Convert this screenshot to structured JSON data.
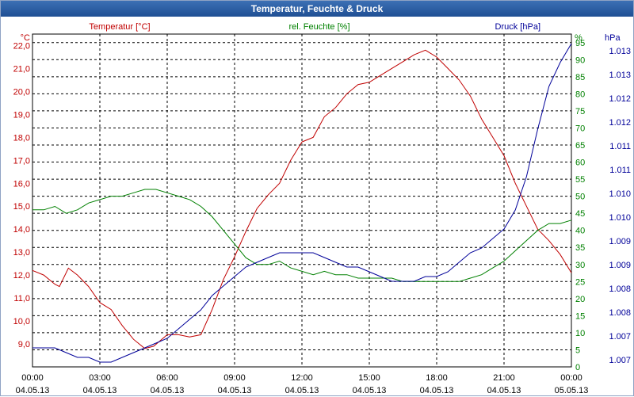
{
  "window": {
    "title": "Temperatur, Feuchte & Druck"
  },
  "colors": {
    "temperature": "#c00000",
    "humidity": "#008000",
    "pressure": "#000099",
    "axis_text": "#000000",
    "grid": "#000000",
    "titlebar": "#2a5da3"
  },
  "chart_data": {
    "type": "line",
    "title": "Temperatur, Feuchte & Druck",
    "x_time_labels": [
      "00:00",
      "03:00",
      "06:00",
      "09:00",
      "12:00",
      "15:00",
      "18:00",
      "21:00",
      "00:00"
    ],
    "x_date_labels": [
      "04.05.13",
      "04.05.13",
      "04.05.13",
      "04.05.13",
      "04.05.13",
      "04.05.13",
      "04.05.13",
      "04.05.13",
      "05.05.13"
    ],
    "x_hours": {
      "min": 0,
      "max": 24
    },
    "axes": {
      "temperature": {
        "unit": "°C",
        "ylim": [
          8.0,
          22.5
        ],
        "tick_labels": [
          "9,0",
          "10,0",
          "11,0",
          "12,0",
          "13,0",
          "14,0",
          "15,0",
          "16,0",
          "17,0",
          "18,0",
          "19,0",
          "20,0",
          "21,0",
          "22,0"
        ],
        "tick_values": [
          9,
          10,
          11,
          12,
          13,
          14,
          15,
          16,
          17,
          18,
          19,
          20,
          21,
          22
        ]
      },
      "humidity": {
        "unit": "%",
        "ylim": [
          0,
          97.5
        ],
        "tick_labels": [
          "0",
          "5",
          "10",
          "15",
          "20",
          "25",
          "30",
          "35",
          "40",
          "45",
          "50",
          "55",
          "60",
          "65",
          "70",
          "75",
          "80",
          "85",
          "90",
          "95"
        ],
        "tick_values": [
          0,
          5,
          10,
          15,
          20,
          25,
          30,
          35,
          40,
          45,
          50,
          55,
          60,
          65,
          70,
          75,
          80,
          85,
          90,
          95
        ]
      },
      "pressure": {
        "unit": "hPa",
        "ylim": [
          1006.6,
          1013.6
        ],
        "tick_labels": [
          "1.007",
          "1.007",
          "1.008",
          "1.008",
          "1.009",
          "1.009",
          "1.010",
          "1.010",
          "1.011",
          "1.011",
          "1.012",
          "1.012",
          "1.013",
          "1.013"
        ],
        "tick_values": [
          1006.75,
          1007.25,
          1007.75,
          1008.25,
          1008.75,
          1009.25,
          1009.75,
          1010.25,
          1010.75,
          1011.25,
          1011.75,
          1012.25,
          1012.75,
          1013.25
        ]
      }
    },
    "series": [
      {
        "name": "Temperatur [°C]",
        "axis": "temperature",
        "x": [
          0,
          0.5,
          1.0,
          1.2,
          1.6,
          2.0,
          2.5,
          3.0,
          3.5,
          4.0,
          4.5,
          5.0,
          5.4,
          6.0,
          6.5,
          7.0,
          7.5,
          8.0,
          8.5,
          9.0,
          9.5,
          10.0,
          10.5,
          11.0,
          11.5,
          12.0,
          12.5,
          13.0,
          13.5,
          14.0,
          14.5,
          15.0,
          15.5,
          16.0,
          16.5,
          17.0,
          17.5,
          18.0,
          18.5,
          19.0,
          19.5,
          20.0,
          20.5,
          21.0,
          21.5,
          22.0,
          22.5,
          23.0,
          23.5,
          24.0
        ],
        "values": [
          12.2,
          12.0,
          11.6,
          11.5,
          12.3,
          12.0,
          11.5,
          10.8,
          10.5,
          9.8,
          9.2,
          8.8,
          8.9,
          9.4,
          9.4,
          9.3,
          9.4,
          10.5,
          11.8,
          12.8,
          13.9,
          14.9,
          15.5,
          16.0,
          17.0,
          17.8,
          18.0,
          18.9,
          19.3,
          19.9,
          20.3,
          20.4,
          20.7,
          21.0,
          21.3,
          21.6,
          21.8,
          21.5,
          21.0,
          20.5,
          19.8,
          18.8,
          18.0,
          17.2,
          16.0,
          15.0,
          14.0,
          13.5,
          12.9,
          12.1
        ]
      },
      {
        "name": "rel. Feuchte [%]",
        "axis": "humidity",
        "x": [
          0,
          0.5,
          1.0,
          1.5,
          2.0,
          2.5,
          3.0,
          3.5,
          4.0,
          4.5,
          5.0,
          5.5,
          6.0,
          6.5,
          7.0,
          7.5,
          8.0,
          8.5,
          9.0,
          9.5,
          10.0,
          10.5,
          11.0,
          11.5,
          12.0,
          12.5,
          13.0,
          13.5,
          14.0,
          14.5,
          15.0,
          15.5,
          16.0,
          16.5,
          17.0,
          17.5,
          18.0,
          18.5,
          19.0,
          19.5,
          20.0,
          20.5,
          21.0,
          21.5,
          22.0,
          22.5,
          23.0,
          23.5,
          24.0
        ],
        "values": [
          46,
          46,
          47,
          45,
          46,
          48,
          49,
          50,
          50,
          51,
          52,
          52,
          51,
          50,
          49,
          47,
          44,
          40,
          36,
          32,
          30,
          30,
          31,
          29,
          28,
          27,
          28,
          27,
          27,
          26,
          26,
          26,
          26,
          25,
          25,
          25,
          25,
          25,
          25,
          26,
          27,
          29,
          31,
          34,
          37,
          40,
          42,
          42,
          43
        ]
      },
      {
        "name": "Druck [hPa]",
        "axis": "pressure",
        "x": [
          0,
          0.5,
          1.0,
          1.5,
          2.0,
          2.5,
          3.0,
          3.5,
          4.0,
          4.5,
          5.0,
          5.5,
          6.0,
          6.5,
          7.0,
          7.5,
          8.0,
          8.5,
          9.0,
          9.5,
          10.0,
          10.5,
          11.0,
          11.5,
          12.0,
          12.5,
          13.0,
          13.5,
          14.0,
          14.5,
          15.0,
          15.5,
          16.0,
          16.5,
          17.0,
          17.5,
          18.0,
          18.5,
          19.0,
          19.5,
          20.0,
          20.5,
          21.0,
          21.5,
          22.0,
          22.5,
          23.0,
          23.5,
          24.0
        ],
        "values": [
          1007.0,
          1007.0,
          1007.0,
          1006.9,
          1006.8,
          1006.8,
          1006.7,
          1006.7,
          1006.8,
          1006.9,
          1007.0,
          1007.1,
          1007.2,
          1007.4,
          1007.6,
          1007.8,
          1008.1,
          1008.3,
          1008.5,
          1008.7,
          1008.8,
          1008.9,
          1009.0,
          1009.0,
          1009.0,
          1009.0,
          1008.9,
          1008.8,
          1008.7,
          1008.7,
          1008.6,
          1008.5,
          1008.4,
          1008.4,
          1008.4,
          1008.5,
          1008.5,
          1008.6,
          1008.8,
          1009.0,
          1009.1,
          1009.3,
          1009.5,
          1009.9,
          1010.6,
          1011.6,
          1012.5,
          1013.0,
          1013.4
        ]
      }
    ]
  }
}
